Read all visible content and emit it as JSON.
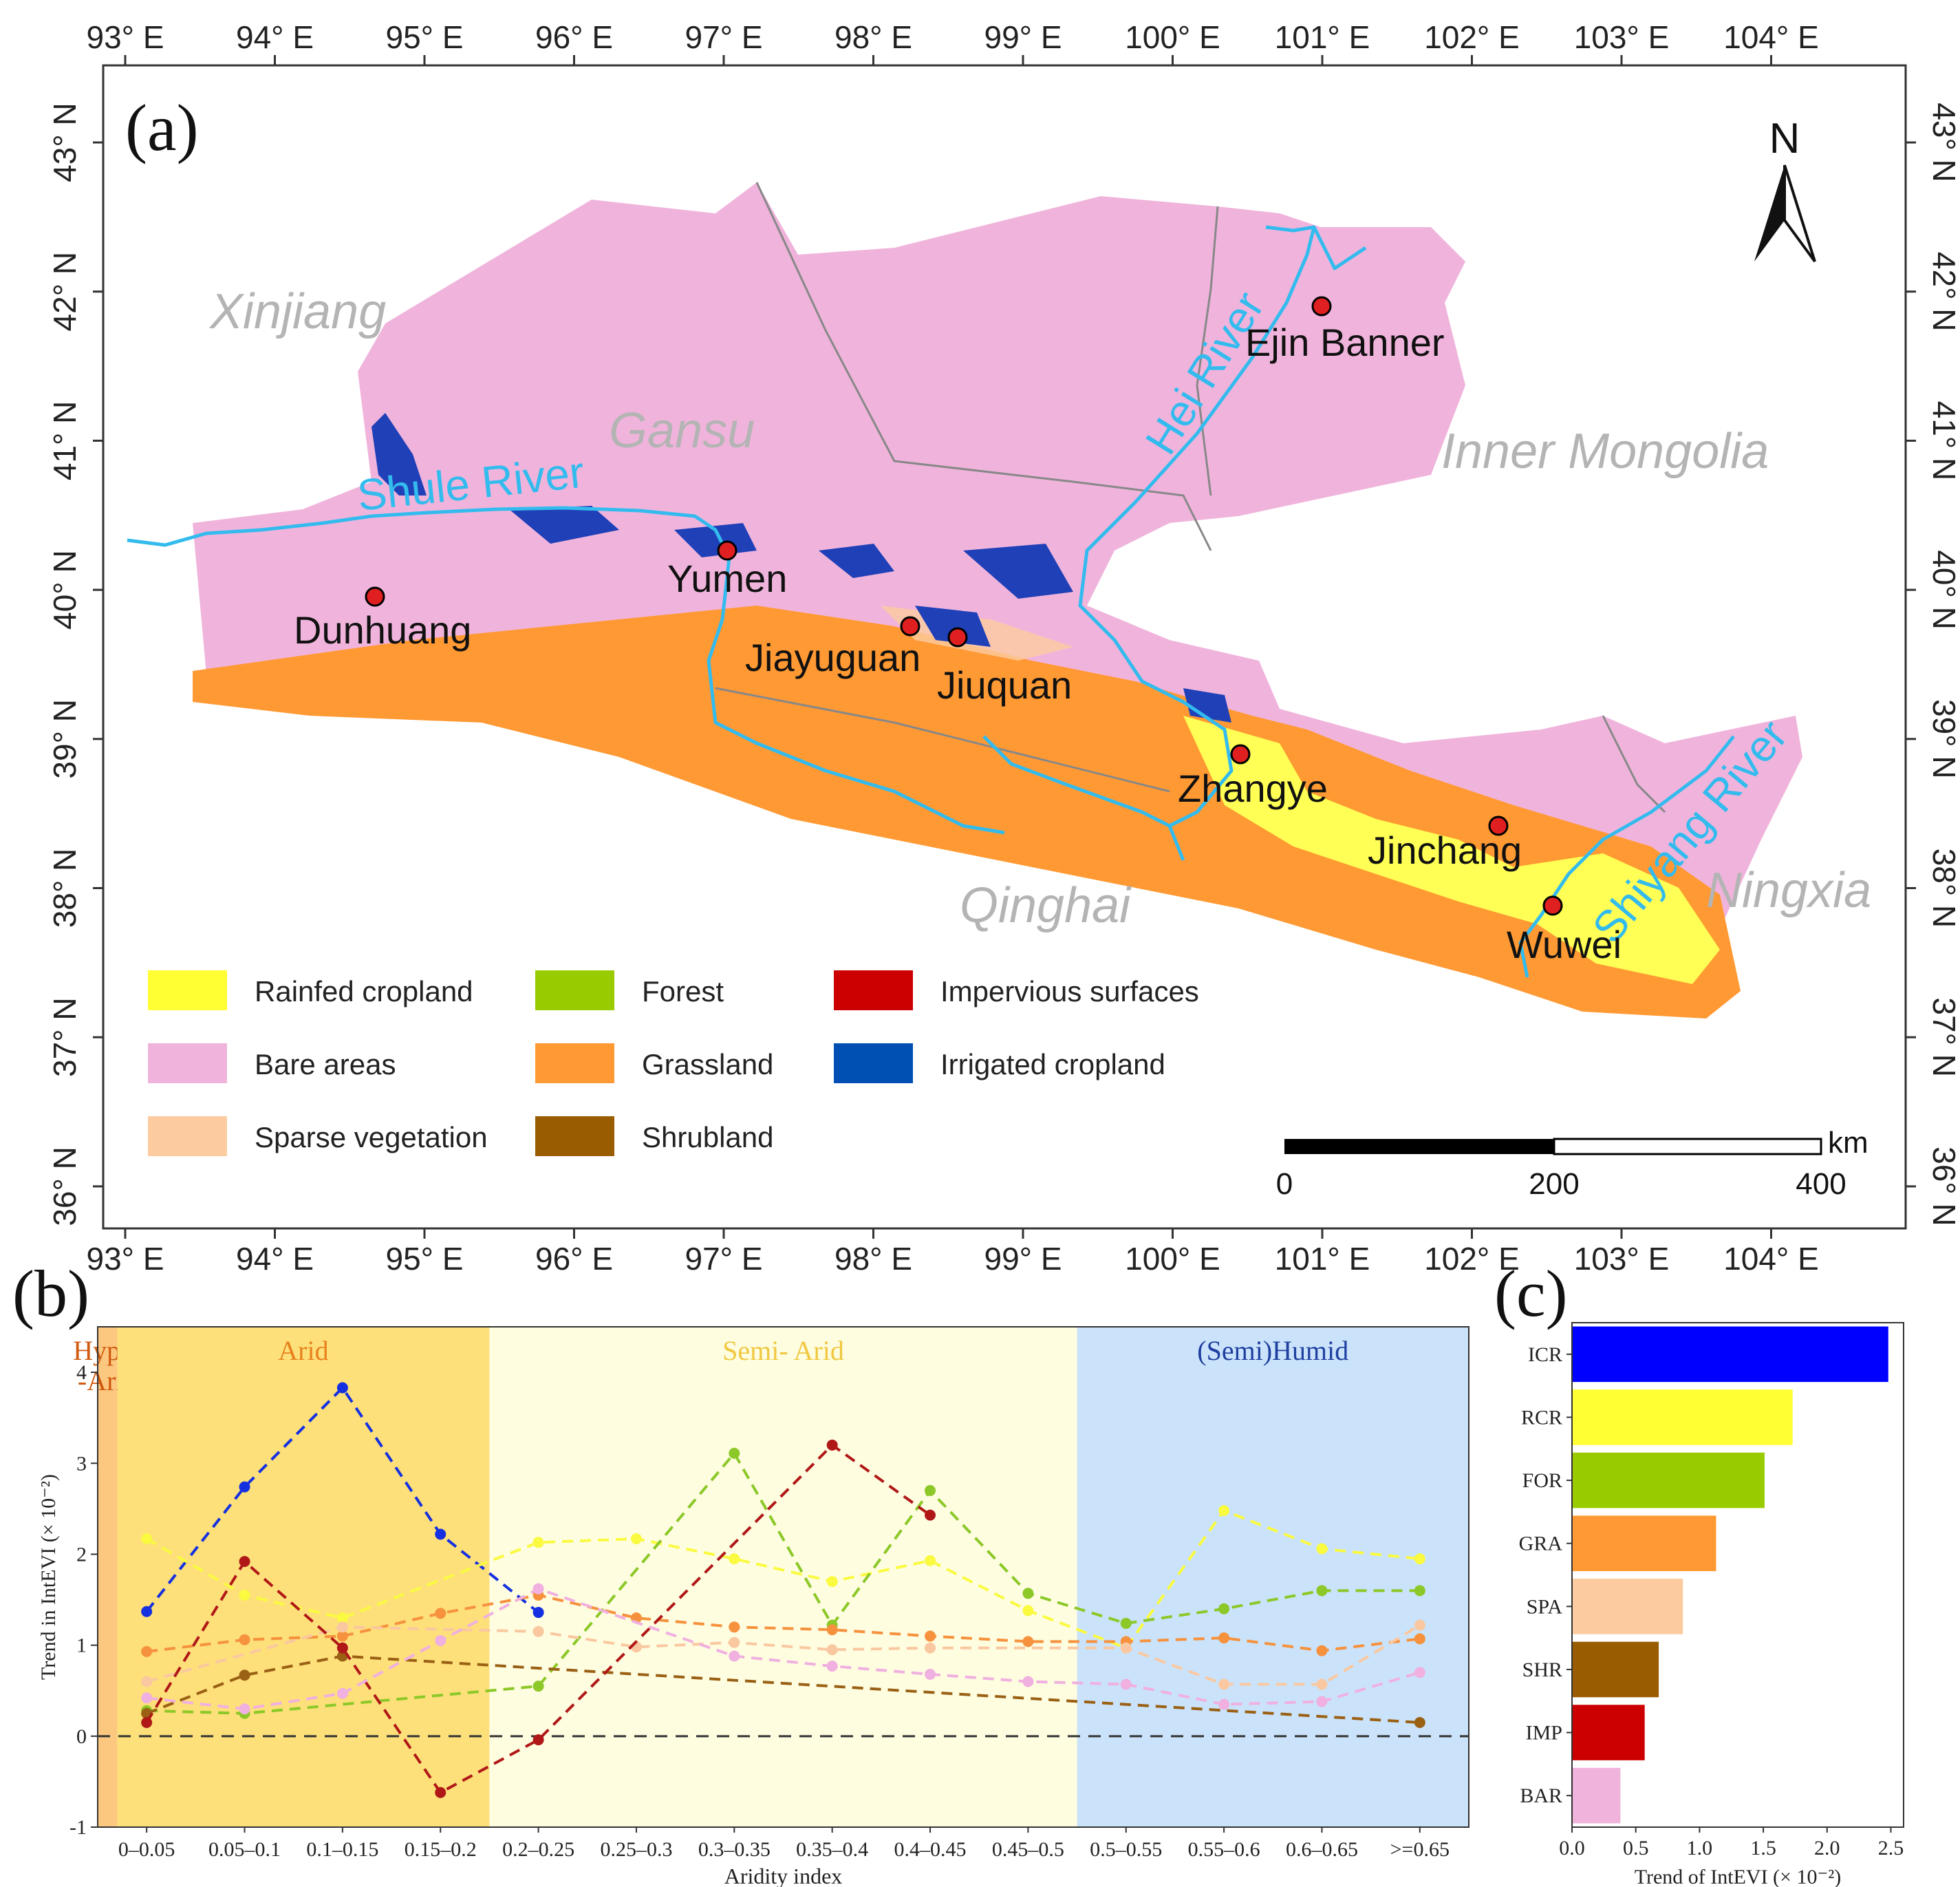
{
  "panel_a": {
    "label": "(a)",
    "north_label": "N",
    "lon_ticks": [
      {
        "value": 93,
        "label": "93° E"
      },
      {
        "value": 94,
        "label": "94° E"
      },
      {
        "value": 95,
        "label": "95° E"
      },
      {
        "value": 96,
        "label": "96° E"
      },
      {
        "value": 97,
        "label": "97° E"
      },
      {
        "value": 98,
        "label": "98° E"
      },
      {
        "value": 99,
        "label": "99° E"
      },
      {
        "value": 100,
        "label": "100° E"
      },
      {
        "value": 101,
        "label": "101° E"
      },
      {
        "value": 102,
        "label": "102° E"
      },
      {
        "value": 103,
        "label": "103° E"
      },
      {
        "value": 104,
        "label": "104° E"
      }
    ],
    "lat_ticks": [
      {
        "value": 43,
        "label": "43° N"
      },
      {
        "value": 42,
        "label": "42° N"
      },
      {
        "value": 41,
        "label": "41° N"
      },
      {
        "value": 40,
        "label": "40° N"
      },
      {
        "value": 39,
        "label": "39° N"
      },
      {
        "value": 38,
        "label": "38° N"
      },
      {
        "value": 37,
        "label": "37° N"
      },
      {
        "value": 36,
        "label": "36° N"
      }
    ],
    "regions": [
      "Xinjiang",
      "Gansu",
      "Inner Mongolia",
      "Qinghai",
      "Ningxia"
    ],
    "rivers": [
      "Shule  River",
      "Hei River",
      "Shiyang River"
    ],
    "cities": [
      "Dunhuang",
      "Yumen",
      "Jiayuguan",
      "Jiuquan",
      "Zhangye",
      "Jinchang",
      "Wuwei",
      "Ejin Banner"
    ],
    "legend": [
      {
        "label": "Rainfed cropland",
        "color": "#ffff33"
      },
      {
        "label": "Forest",
        "color": "#99cc00"
      },
      {
        "label": "Impervious surfaces",
        "color": "#cc0000"
      },
      {
        "label": "Bare areas",
        "color": "#f0b4dc"
      },
      {
        "label": "Grassland",
        "color": "#ff9933"
      },
      {
        "label": "Irrigated cropland",
        "color": "#0050b4"
      },
      {
        "label": "Sparse vegetation",
        "color": "#fccba0"
      },
      {
        "label": "Shrubland",
        "color": "#9a5c00"
      }
    ],
    "scale_bar": {
      "unit": "km",
      "ticks": [
        "0",
        "200",
        "400"
      ]
    },
    "colors": {
      "bare": "#f0b4dc",
      "grass": "#ff9933",
      "rainfed": "#ffff33",
      "irrigated": "#2040b8",
      "river": "#33bbee",
      "city": "#e02020",
      "label_gray": "#b4b4b4"
    }
  },
  "panel_b": {
    "label": "(b)",
    "zones": [
      {
        "label_lines": [
          "Hyper",
          "-Arid"
        ],
        "color": "#fcc880",
        "text_color": "#d05a10"
      },
      {
        "label_lines": [
          "Arid"
        ],
        "color": "#fde07a",
        "text_color": "#e8821e"
      },
      {
        "label_lines": [
          "Semi- Arid"
        ],
        "color": "#fefde0",
        "text_color": "#f0c840"
      },
      {
        "label_lines": [
          "(Semi)Humid"
        ],
        "color": "#cae3fb",
        "text_color": "#2040a0"
      }
    ],
    "chart_data": {
      "type": "line",
      "x": [
        "0–0.05",
        "0.05–0.1",
        "0.1–0.15",
        "0.15–0.2",
        "0.2–0.25",
        "0.25–0.3",
        "0.3–0.35",
        "0.35–0.4",
        "0.4–0.45",
        "0.45–0.5",
        "0.5–0.55",
        "0.55–0.6",
        "0.6–0.65",
        ">=0.65"
      ],
      "xlabel": "Aridity index",
      "ylabel": "Trend in IntEVI (× 10⁻²)",
      "ylim": [
        -1,
        4.5
      ],
      "yticks": [
        "-1",
        "0",
        "1",
        "2",
        "3",
        "4"
      ],
      "series": [
        {
          "code": "ICR",
          "color": "#1530e0",
          "values": [
            1.37,
            2.74,
            3.83,
            2.22,
            1.36,
            null,
            null,
            null,
            null,
            null,
            null,
            null,
            null,
            null
          ]
        },
        {
          "code": "RCR",
          "color": "#fafa40",
          "values": [
            2.17,
            1.55,
            1.3,
            null,
            2.13,
            2.17,
            1.95,
            1.7,
            1.93,
            1.38,
            0.97,
            2.48,
            2.06,
            1.95
          ]
        },
        {
          "code": "FOR",
          "color": "#8cc828",
          "values": [
            0.28,
            0.25,
            null,
            null,
            0.55,
            null,
            3.11,
            1.22,
            2.7,
            1.57,
            1.24,
            1.4,
            1.6,
            1.6
          ]
        },
        {
          "code": "GRA",
          "color": "#f6923e",
          "values": [
            0.93,
            1.06,
            1.1,
            1.35,
            1.55,
            1.3,
            1.2,
            1.17,
            1.1,
            1.04,
            1.04,
            1.08,
            0.94,
            1.07
          ]
        },
        {
          "code": "SPA",
          "color": "#fac8a0",
          "values": [
            0.6,
            null,
            1.2,
            null,
            1.15,
            0.98,
            1.03,
            0.95,
            0.97,
            null,
            0.97,
            0.57,
            0.57,
            1.22
          ]
        },
        {
          "code": "SHR",
          "color": "#9a6014",
          "values": [
            0.25,
            0.67,
            0.88,
            null,
            null,
            null,
            null,
            null,
            null,
            null,
            null,
            null,
            null,
            0.15
          ]
        },
        {
          "code": "IMP",
          "color": "#b01818",
          "values": [
            0.15,
            1.92,
            0.97,
            -0.62,
            -0.04,
            null,
            null,
            3.2,
            2.43,
            null,
            null,
            null,
            null,
            null
          ]
        },
        {
          "code": "BAR",
          "color": "#f0b0e0",
          "values": [
            0.42,
            0.3,
            0.47,
            1.05,
            1.62,
            null,
            0.88,
            0.77,
            0.68,
            0.6,
            0.57,
            0.35,
            0.38,
            0.7
          ]
        }
      ]
    }
  },
  "panel_c": {
    "label": "(c)",
    "chart_data": {
      "type": "bar",
      "orientation": "horizontal",
      "categories": [
        "ICR",
        "RCR",
        "FOR",
        "GRA",
        "SPA",
        "SHR",
        "IMP",
        "BAR"
      ],
      "values": [
        2.48,
        1.73,
        1.51,
        1.13,
        0.87,
        0.68,
        0.57,
        0.38
      ],
      "colors": [
        "#0000ff",
        "#ffff33",
        "#99cc00",
        "#ff9933",
        "#fccba0",
        "#9a5c00",
        "#cc0000",
        "#f0b4dc"
      ],
      "xlabel": "Trend of IntEVI (× 10⁻²)",
      "xlim": [
        0,
        2.6
      ],
      "xticks": [
        "0.0",
        "0.5",
        "1.0",
        "1.5",
        "2.0",
        "2.5"
      ]
    }
  }
}
